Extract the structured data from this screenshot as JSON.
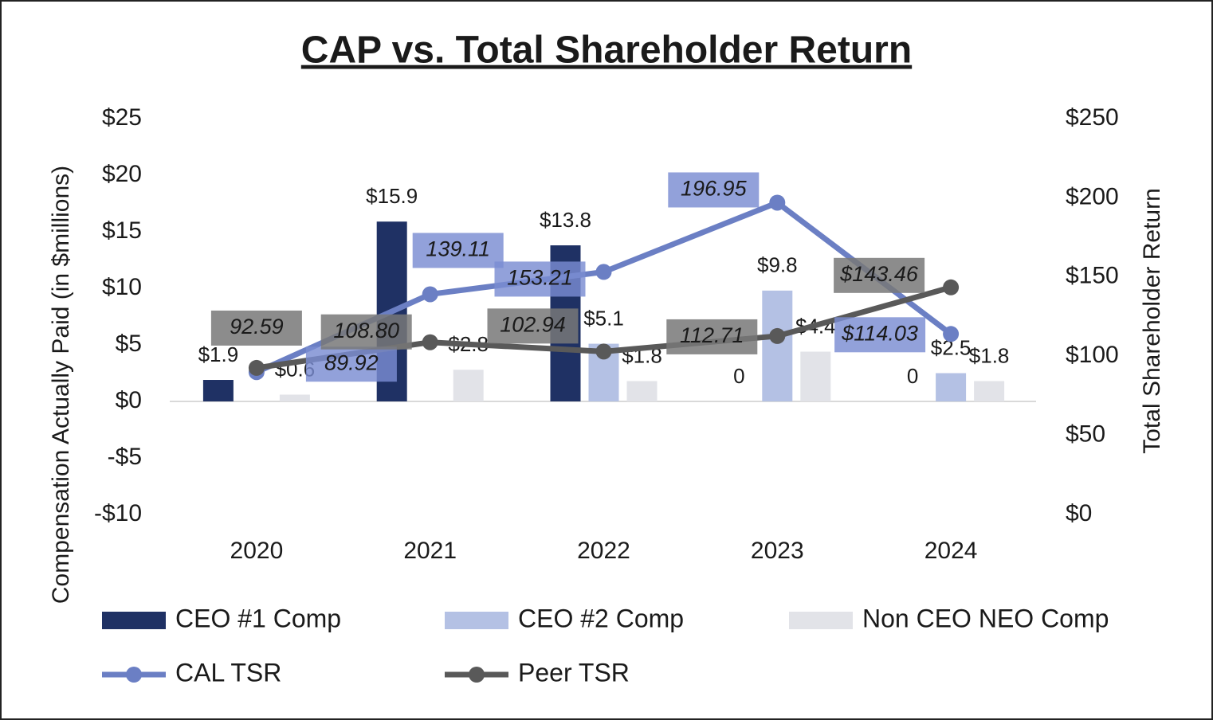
{
  "chart_data": {
    "type": "bar-line",
    "title": "CAP vs. Total Shareholder Return",
    "y_label": "Compensation Actually Paid (in $millions)",
    "y2_label": "Total Shareholder Return",
    "categories": [
      "2020",
      "2021",
      "2022",
      "2023",
      "2024"
    ],
    "series": [
      {
        "name": "CEO #1 Comp",
        "type": "bar",
        "color": "#1f3164",
        "values": [
          1.9,
          15.9,
          13.8,
          0,
          0
        ],
        "value_labels": [
          "$1.9",
          "$15.9",
          "$13.8",
          "0",
          "0"
        ]
      },
      {
        "name": "CEO #2 Comp",
        "type": "bar",
        "color": "#b4c1e4",
        "values": [
          null,
          null,
          5.1,
          9.8,
          2.5
        ],
        "value_labels": [
          null,
          null,
          "$5.1",
          "$9.8",
          "$2.5"
        ]
      },
      {
        "name": "Non CEO NEO Comp",
        "type": "bar",
        "color": "#e2e3e8",
        "values": [
          0.6,
          2.8,
          1.8,
          4.4,
          1.8
        ],
        "value_labels": [
          "$0.6",
          "$2.8",
          "$1.8",
          "$4.4",
          "$1.8"
        ]
      },
      {
        "name": "CAL TSR",
        "type": "line",
        "axis": "y2",
        "color": "#6b7fc4",
        "values": [
          89.92,
          139.11,
          153.21,
          196.95,
          114.03
        ],
        "value_labels": [
          "89.92",
          "139.11",
          "153.21",
          "196.95",
          "$114.03"
        ]
      },
      {
        "name": "Peer TSR",
        "type": "line",
        "axis": "y2",
        "color": "#595959",
        "values": [
          92.59,
          108.8,
          102.94,
          112.71,
          143.46
        ],
        "value_labels": [
          "92.59",
          "108.80",
          "102.94",
          "112.71",
          "$143.46"
        ]
      }
    ],
    "ylim": [
      -10,
      25
    ],
    "yticks": [
      {
        "value": -10,
        "label": "-$10"
      },
      {
        "value": -5,
        "label": "-$5"
      },
      {
        "value": 0,
        "label": "$0"
      },
      {
        "value": 5,
        "label": "$5"
      },
      {
        "value": 10,
        "label": "$10"
      },
      {
        "value": 15,
        "label": "$15"
      },
      {
        "value": 20,
        "label": "$20"
      },
      {
        "value": 25,
        "label": "$25"
      }
    ],
    "y2lim": [
      0,
      250
    ],
    "y2ticks": [
      {
        "value": 0,
        "label": "$0"
      },
      {
        "value": 50,
        "label": "$50"
      },
      {
        "value": 100,
        "label": "$100"
      },
      {
        "value": 150,
        "label": "$150"
      },
      {
        "value": 200,
        "label": "$200"
      },
      {
        "value": 250,
        "label": "$250"
      }
    ],
    "grid": false
  }
}
